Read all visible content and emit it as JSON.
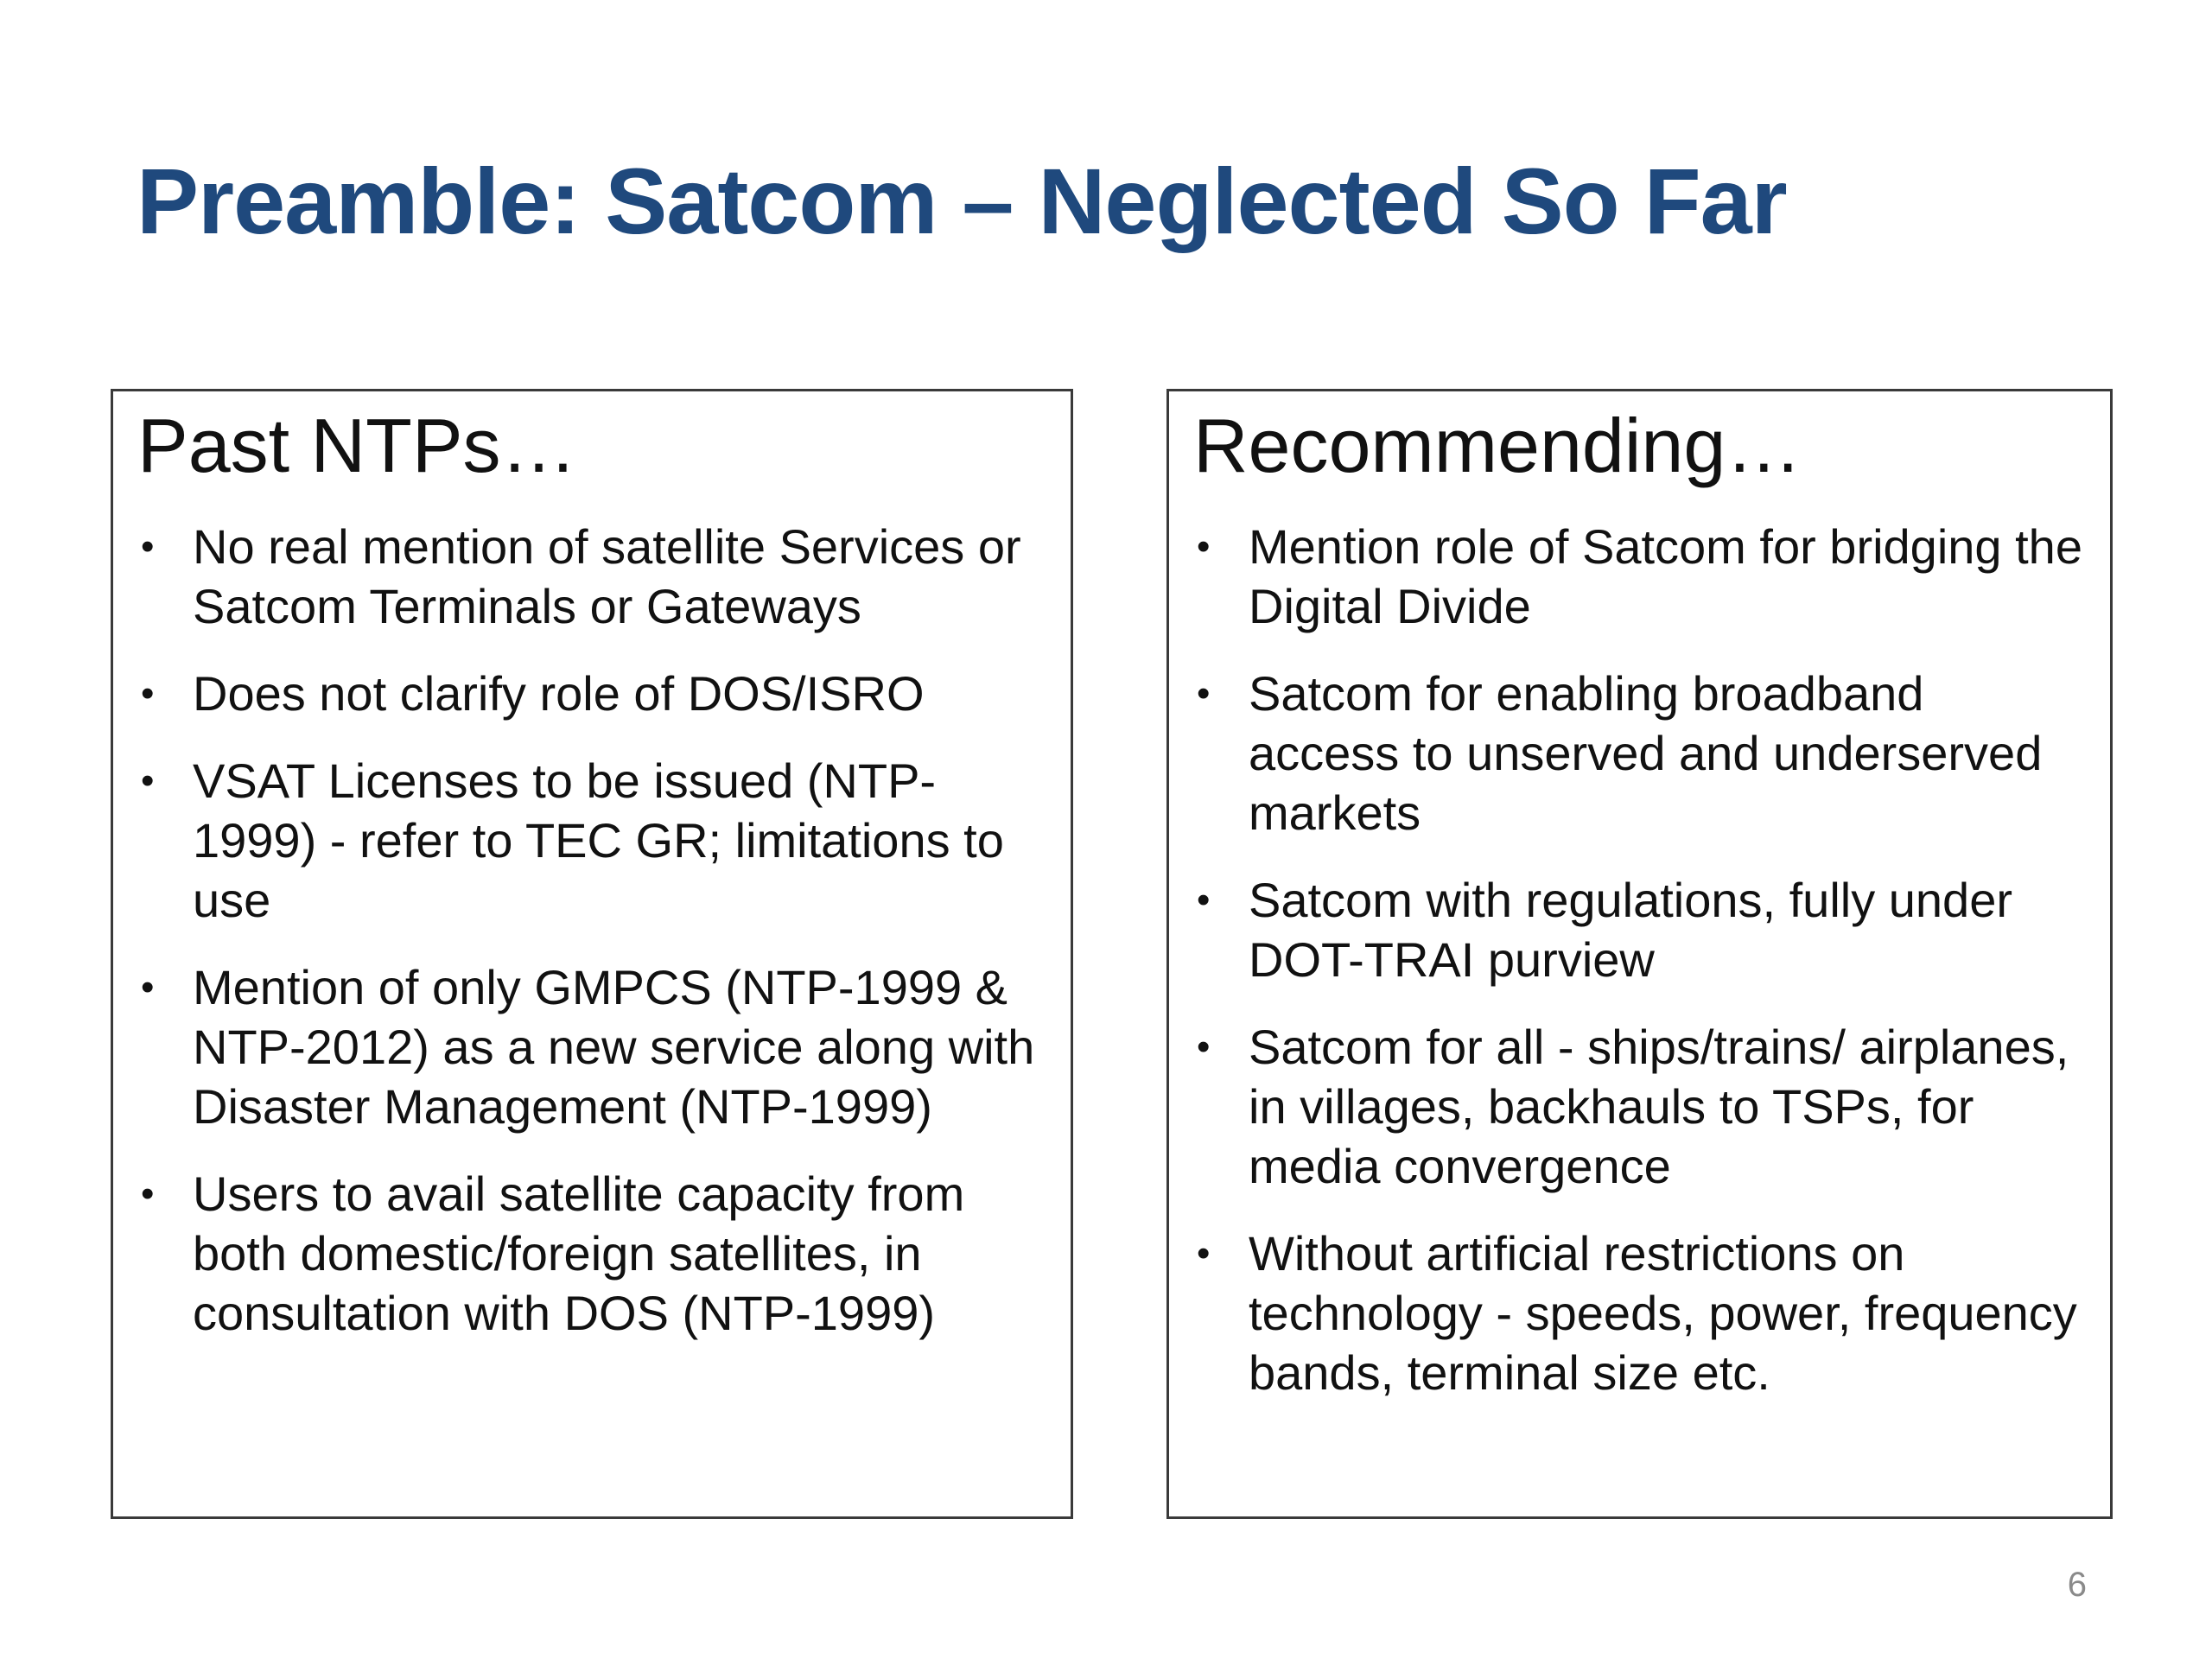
{
  "slide": {
    "title": "Preamble:  Satcom – Neglected So Far",
    "number": "6"
  },
  "left_panel": {
    "heading": "Past NTPs…",
    "bullets": [
      "No real mention of satellite Services or Satcom Terminals or Gateways",
      "Does not clarify role of DOS/ISRO",
      "VSAT Licenses to be issued (NTP-1999) - refer to TEC GR; limitations  to use",
      "Mention of only GMPCS (NTP-1999 & NTP-2012) as a new service along with Disaster Management (NTP-1999)",
      "Users to avail satellite capacity from both domestic/foreign satellites, in consultation with DOS (NTP-1999)"
    ]
  },
  "right_panel": {
    "heading": "Recommending…",
    "bullets": [
      "Mention role of Satcom for bridging the Digital Divide",
      "Satcom for enabling broadband access to unserved and underserved markets",
      "Satcom with regulations, fully under DOT-TRAI purview",
      "Satcom for all -  ships/trains/ airplanes, in villages, backhauls to TSPs, for media convergence",
      "Without artificial restrictions on technology - speeds, power, frequency bands, terminal size etc."
    ]
  },
  "bullet_glyph": "•",
  "colors": {
    "title": "#1F497D",
    "text": "#111111",
    "border": "#3a3a3a",
    "slide_number": "#8a8a8a"
  }
}
